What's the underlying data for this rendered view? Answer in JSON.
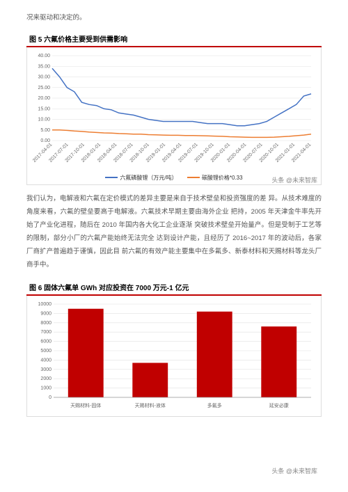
{
  "intro": "况来驱动和决定的。",
  "chart1": {
    "title": "图 5  六氟价格主要受到供需影响",
    "type": "line",
    "ylim": [
      0,
      40
    ],
    "ytick_step": 5,
    "y_ticks": [
      "0.00",
      "5.00",
      "10.00",
      "15.00",
      "20.00",
      "25.00",
      "30.00",
      "35.00",
      "40.00"
    ],
    "x_labels": [
      "2017-04-01",
      "2017-07-01",
      "2017-10-01",
      "2018-01-01",
      "2018-04-01",
      "2018-07-01",
      "2018-10-01",
      "2019-01-01",
      "2019-04-01",
      "2019-07-01",
      "2019-10-01",
      "2020-01-01",
      "2020-04-01",
      "2020-07-01",
      "2020-10-01",
      "2021-01-01",
      "2021-04-01"
    ],
    "series1": {
      "name": "六氟磷酸锂（万元/吨）",
      "color": "#4472c4",
      "values": [
        34,
        30,
        25,
        23,
        18,
        17,
        16.5,
        15,
        14.5,
        13,
        12.5,
        12,
        11,
        10,
        9.5,
        9,
        9,
        9,
        9,
        9,
        8.5,
        8,
        8,
        8,
        7.5,
        7,
        7,
        7.5,
        8,
        9,
        11,
        13,
        15,
        17,
        21,
        22
      ]
    },
    "series2": {
      "name": "碳酸锂价格*0.33",
      "color": "#ed7d31",
      "values": [
        5,
        5,
        4.8,
        4.5,
        4.3,
        4,
        3.8,
        3.6,
        3.5,
        3.3,
        3.2,
        3,
        3,
        2.8,
        2.7,
        2.6,
        2.5,
        2.5,
        2.4,
        2.4,
        2.3,
        2.2,
        2.1,
        2,
        1.8,
        1.7,
        1.6,
        1.5,
        1.5,
        1.5,
        1.6,
        1.8,
        2,
        2.3,
        2.6,
        3
      ]
    },
    "grid_color": "#e0e0e0",
    "axis_font": 7
  },
  "body": "我们认为，电解液和六氟在定价模式的差异主要是来自于技术壁垒和投资强度的差 异。从技术难度的角度来看，六氟的壁垒要高于电解液。六氟技术早期主要由海外企业 把持，2005 年天津金牛率先开始了产业化进程，随后在 2010 年国内各大化工企业逐渐 突破技术壁垒开始量产。但是受制于工艺等的限制，部分小厂的六氟产能始终无法完全 达到设计产能，且经历了 2016~2017 年的波动后，各家厂商扩产普遍趋于谨慎，因此目 前六氟的有效产能主要集中在多氟多、新泰材料和天赐材料等龙头厂商手中。",
  "chart2": {
    "title": "图 6  固体六氟单 GWh 对应投资在 7000 万元-1 亿元",
    "type": "bar",
    "ylim": [
      0,
      10000
    ],
    "ytick_step": 1000,
    "y_ticks": [
      "0",
      "1000",
      "2000",
      "3000",
      "4000",
      "5000",
      "6000",
      "7000",
      "8000",
      "9000",
      "10000"
    ],
    "categories": [
      "天赐材料-固体",
      "天赐材料-液体",
      "多氟多",
      "延安必康"
    ],
    "values": [
      9500,
      3700,
      9200,
      7600
    ],
    "bar_color": "#c00000",
    "grid_color": "#e0e0e0",
    "axis_font": 7
  },
  "watermark": "头条 @未来智库"
}
